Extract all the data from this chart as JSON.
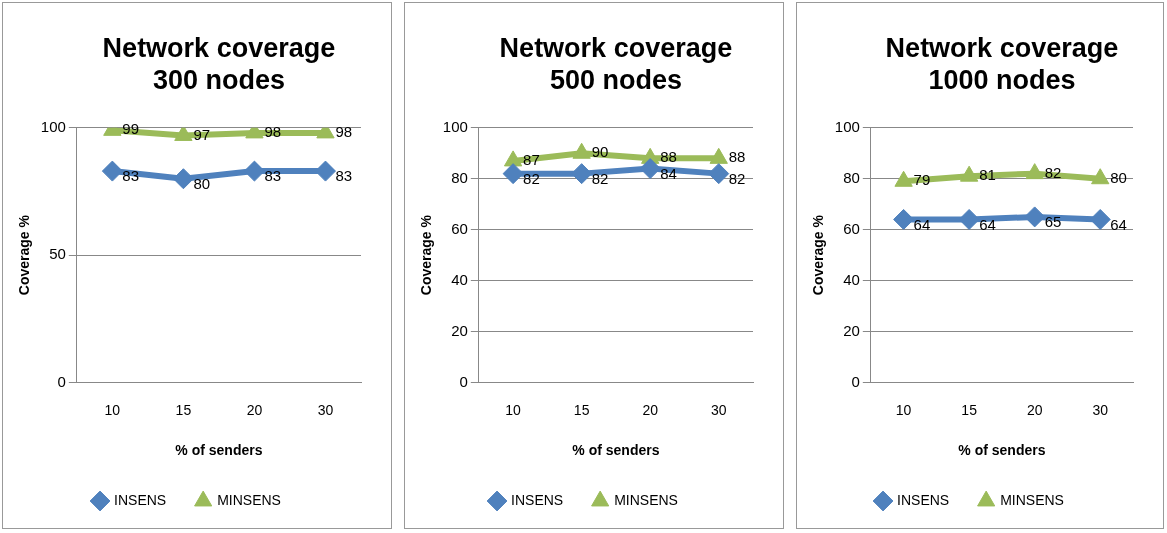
{
  "chart_data": [
    {
      "type": "line",
      "title": "Network coverage 300 nodes",
      "xlabel": "% of senders",
      "ylabel": "Coverage %",
      "categories": [
        "10",
        "15",
        "20",
        "30"
      ],
      "series": [
        {
          "name": "INSENS",
          "color": "#4f81bd",
          "marker": "diamond",
          "values": [
            83,
            80,
            83,
            83
          ]
        },
        {
          "name": "MINSENS",
          "color": "#9bbb59",
          "marker": "triangle",
          "values": [
            99,
            97,
            98,
            98
          ]
        }
      ],
      "ylim": [
        0,
        100
      ],
      "yticks": [
        0,
        50,
        100
      ],
      "grid": "y",
      "legend": "bottom",
      "data_labels": true
    },
    {
      "type": "line",
      "title": "Network coverage 500 nodes",
      "xlabel": "% of senders",
      "ylabel": "Coverage %",
      "categories": [
        "10",
        "15",
        "20",
        "30"
      ],
      "series": [
        {
          "name": "INSENS",
          "color": "#4f81bd",
          "marker": "diamond",
          "values": [
            82,
            82,
            84,
            82
          ]
        },
        {
          "name": "MINSENS",
          "color": "#9bbb59",
          "marker": "triangle",
          "values": [
            87,
            90,
            88,
            88
          ]
        }
      ],
      "ylim": [
        0,
        100
      ],
      "yticks": [
        0,
        20,
        40,
        60,
        80,
        100
      ],
      "grid": "y",
      "legend": "bottom",
      "data_labels": true
    },
    {
      "type": "line",
      "title": "Network coverage 1000 nodes",
      "xlabel": "% of senders",
      "ylabel": "Coverage %",
      "categories": [
        "10",
        "15",
        "20",
        "30"
      ],
      "series": [
        {
          "name": "INSENS",
          "color": "#4f81bd",
          "marker": "diamond",
          "values": [
            64,
            64,
            65,
            64
          ]
        },
        {
          "name": "MINSENS",
          "color": "#9bbb59",
          "marker": "triangle",
          "values": [
            79,
            81,
            82,
            80
          ]
        }
      ],
      "ylim": [
        0,
        100
      ],
      "yticks": [
        0,
        20,
        40,
        60,
        80,
        100
      ],
      "grid": "y",
      "legend": "bottom",
      "data_labels": true
    }
  ]
}
